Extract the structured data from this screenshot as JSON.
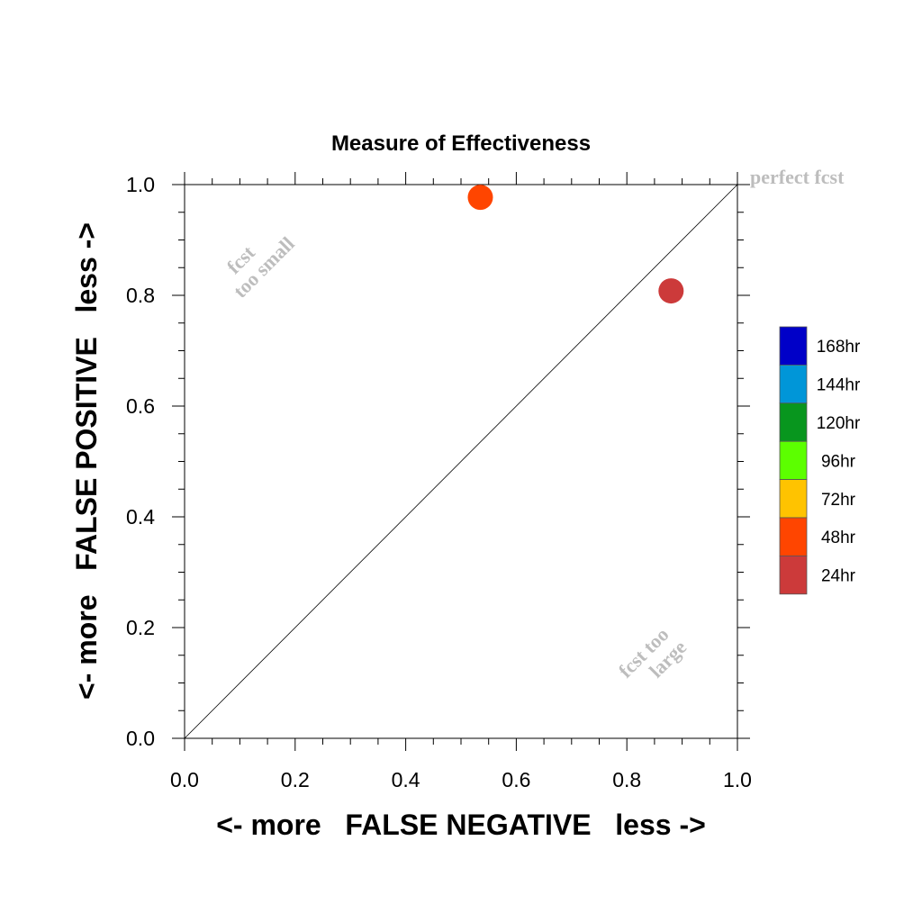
{
  "chart_data": {
    "type": "scatter",
    "title": "Measure of Effectiveness",
    "xlabel": "<- more   FALSE NEGATIVE   less ->",
    "ylabel": "<- more   FALSE POSITIVE   less ->",
    "xlim": [
      0.0,
      1.0
    ],
    "ylim": [
      0.0,
      1.0
    ],
    "xticks": [
      "0.0",
      "0.2",
      "0.4",
      "0.6",
      "0.8",
      "1.0"
    ],
    "yticks": [
      "0.0",
      "0.2",
      "0.4",
      "0.6",
      "0.8",
      "1.0"
    ],
    "grid": false,
    "diagonal_line": true,
    "points": [
      {
        "label": "48hr",
        "x": 0.535,
        "y": 0.977,
        "color": "#ff4500"
      },
      {
        "label": "24hr",
        "x": 0.88,
        "y": 0.808,
        "color": "#cc3a3a"
      }
    ],
    "annotations": {
      "perfect": "perfect fcst",
      "too_small_line1": "fcst",
      "too_small_line2": "too small",
      "too_large_line1": "fcst too",
      "too_large_line2": "large"
    },
    "legend": {
      "position": "right",
      "items": [
        {
          "label": "168hr",
          "color": "#0000c8"
        },
        {
          "label": "144hr",
          "color": "#0096d8"
        },
        {
          "label": "120hr",
          "color": "#08961e"
        },
        {
          "label": "96hr",
          "color": "#5cff00"
        },
        {
          "label": "72hr",
          "color": "#ffc300"
        },
        {
          "label": "48hr",
          "color": "#ff4500"
        },
        {
          "label": "24hr",
          "color": "#cc3a3a"
        }
      ]
    }
  }
}
